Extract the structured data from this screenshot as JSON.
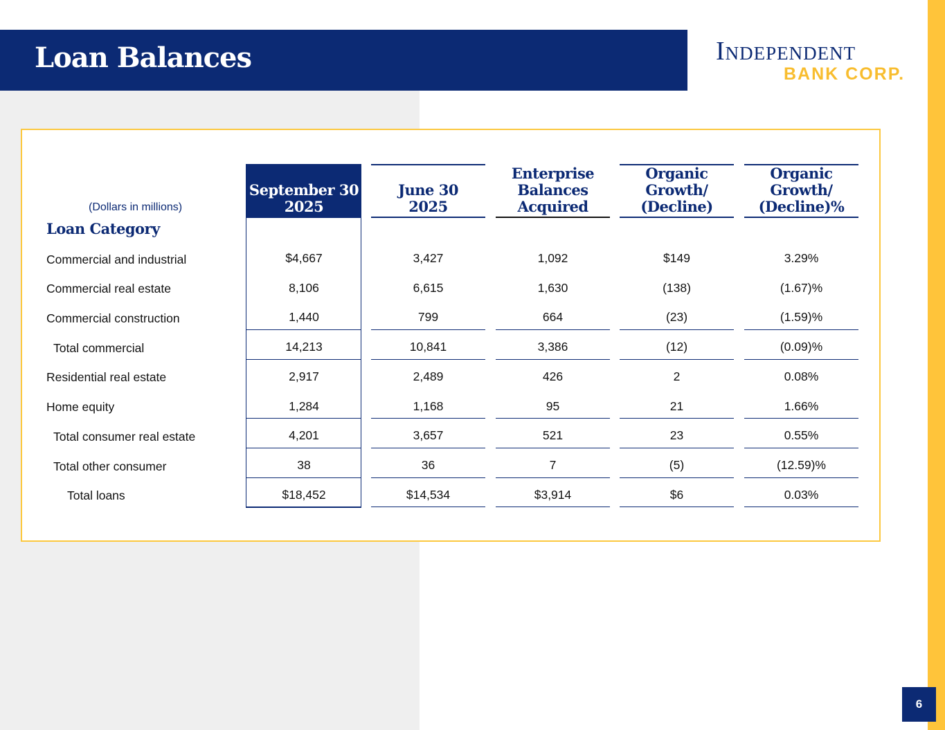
{
  "header": {
    "title": "Loan Balances"
  },
  "logo": {
    "line1": "Independent",
    "line2": "BANK CORP."
  },
  "page_number": "6",
  "table": {
    "units_note": "(Dollars in millions)",
    "category_label": "Loan Category",
    "columns": [
      {
        "line1": "September 30",
        "line2": "2025"
      },
      {
        "line1": "June 30",
        "line2": "2025"
      },
      {
        "line1": "Enterprise",
        "line2": "Balances",
        "line3": "Acquired"
      },
      {
        "line1": "Organic",
        "line2": "Growth/",
        "line3": "(Decline)"
      },
      {
        "line1": "Organic",
        "line2": "Growth/",
        "line3": "(Decline)%"
      }
    ],
    "rows": [
      {
        "label": "Commercial and industrial",
        "values": [
          "$4,667",
          "3,427",
          "1,092",
          "$149",
          "3.29%"
        ]
      },
      {
        "label": "Commercial real estate",
        "values": [
          "8,106",
          "6,615",
          "1,630",
          "(138)",
          "(1.67)%"
        ]
      },
      {
        "label": "Commercial construction",
        "values": [
          "1,440",
          "799",
          "664",
          "(23)",
          "(1.59)%"
        ]
      },
      {
        "label": "Total commercial",
        "values": [
          "14,213",
          "10,841",
          "3,386",
          "(12)",
          "(0.09)%"
        ]
      },
      {
        "label": "Residential real estate",
        "values": [
          "2,917",
          "2,489",
          "426",
          "2",
          "0.08%"
        ]
      },
      {
        "label": "Home equity",
        "values": [
          "1,284",
          "1,168",
          "95",
          "21",
          "1.66%"
        ]
      },
      {
        "label": "Total consumer real estate",
        "values": [
          "4,201",
          "3,657",
          "521",
          "23",
          "0.55%"
        ]
      },
      {
        "label": "Total other consumer",
        "values": [
          "38",
          "36",
          "7",
          "(5)",
          "(12.59)%"
        ]
      },
      {
        "label": "Total loans",
        "values": [
          "$18,452",
          "$14,534",
          "$3,914",
          "$6",
          "0.03%"
        ]
      }
    ]
  },
  "colors": {
    "navy": "#0c2a74",
    "gold": "#ffc43a"
  }
}
